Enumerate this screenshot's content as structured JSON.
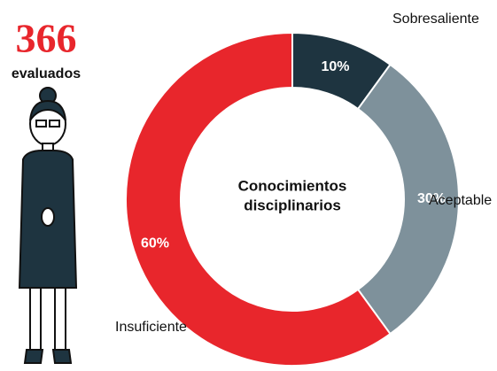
{
  "header": {
    "count": 366,
    "label": "evaluados"
  },
  "chart_data": {
    "type": "pie",
    "center_label": [
      "Conocimientos",
      "disciplinarios"
    ],
    "categories": [
      "Sobresaliente",
      "Aceptable",
      "Insuficiente"
    ],
    "values": [
      10,
      30,
      60
    ],
    "value_labels": [
      "10%",
      "30%",
      "60%"
    ],
    "colors": [
      "#1e3440",
      "#7e919b",
      "#e8262c"
    ]
  }
}
